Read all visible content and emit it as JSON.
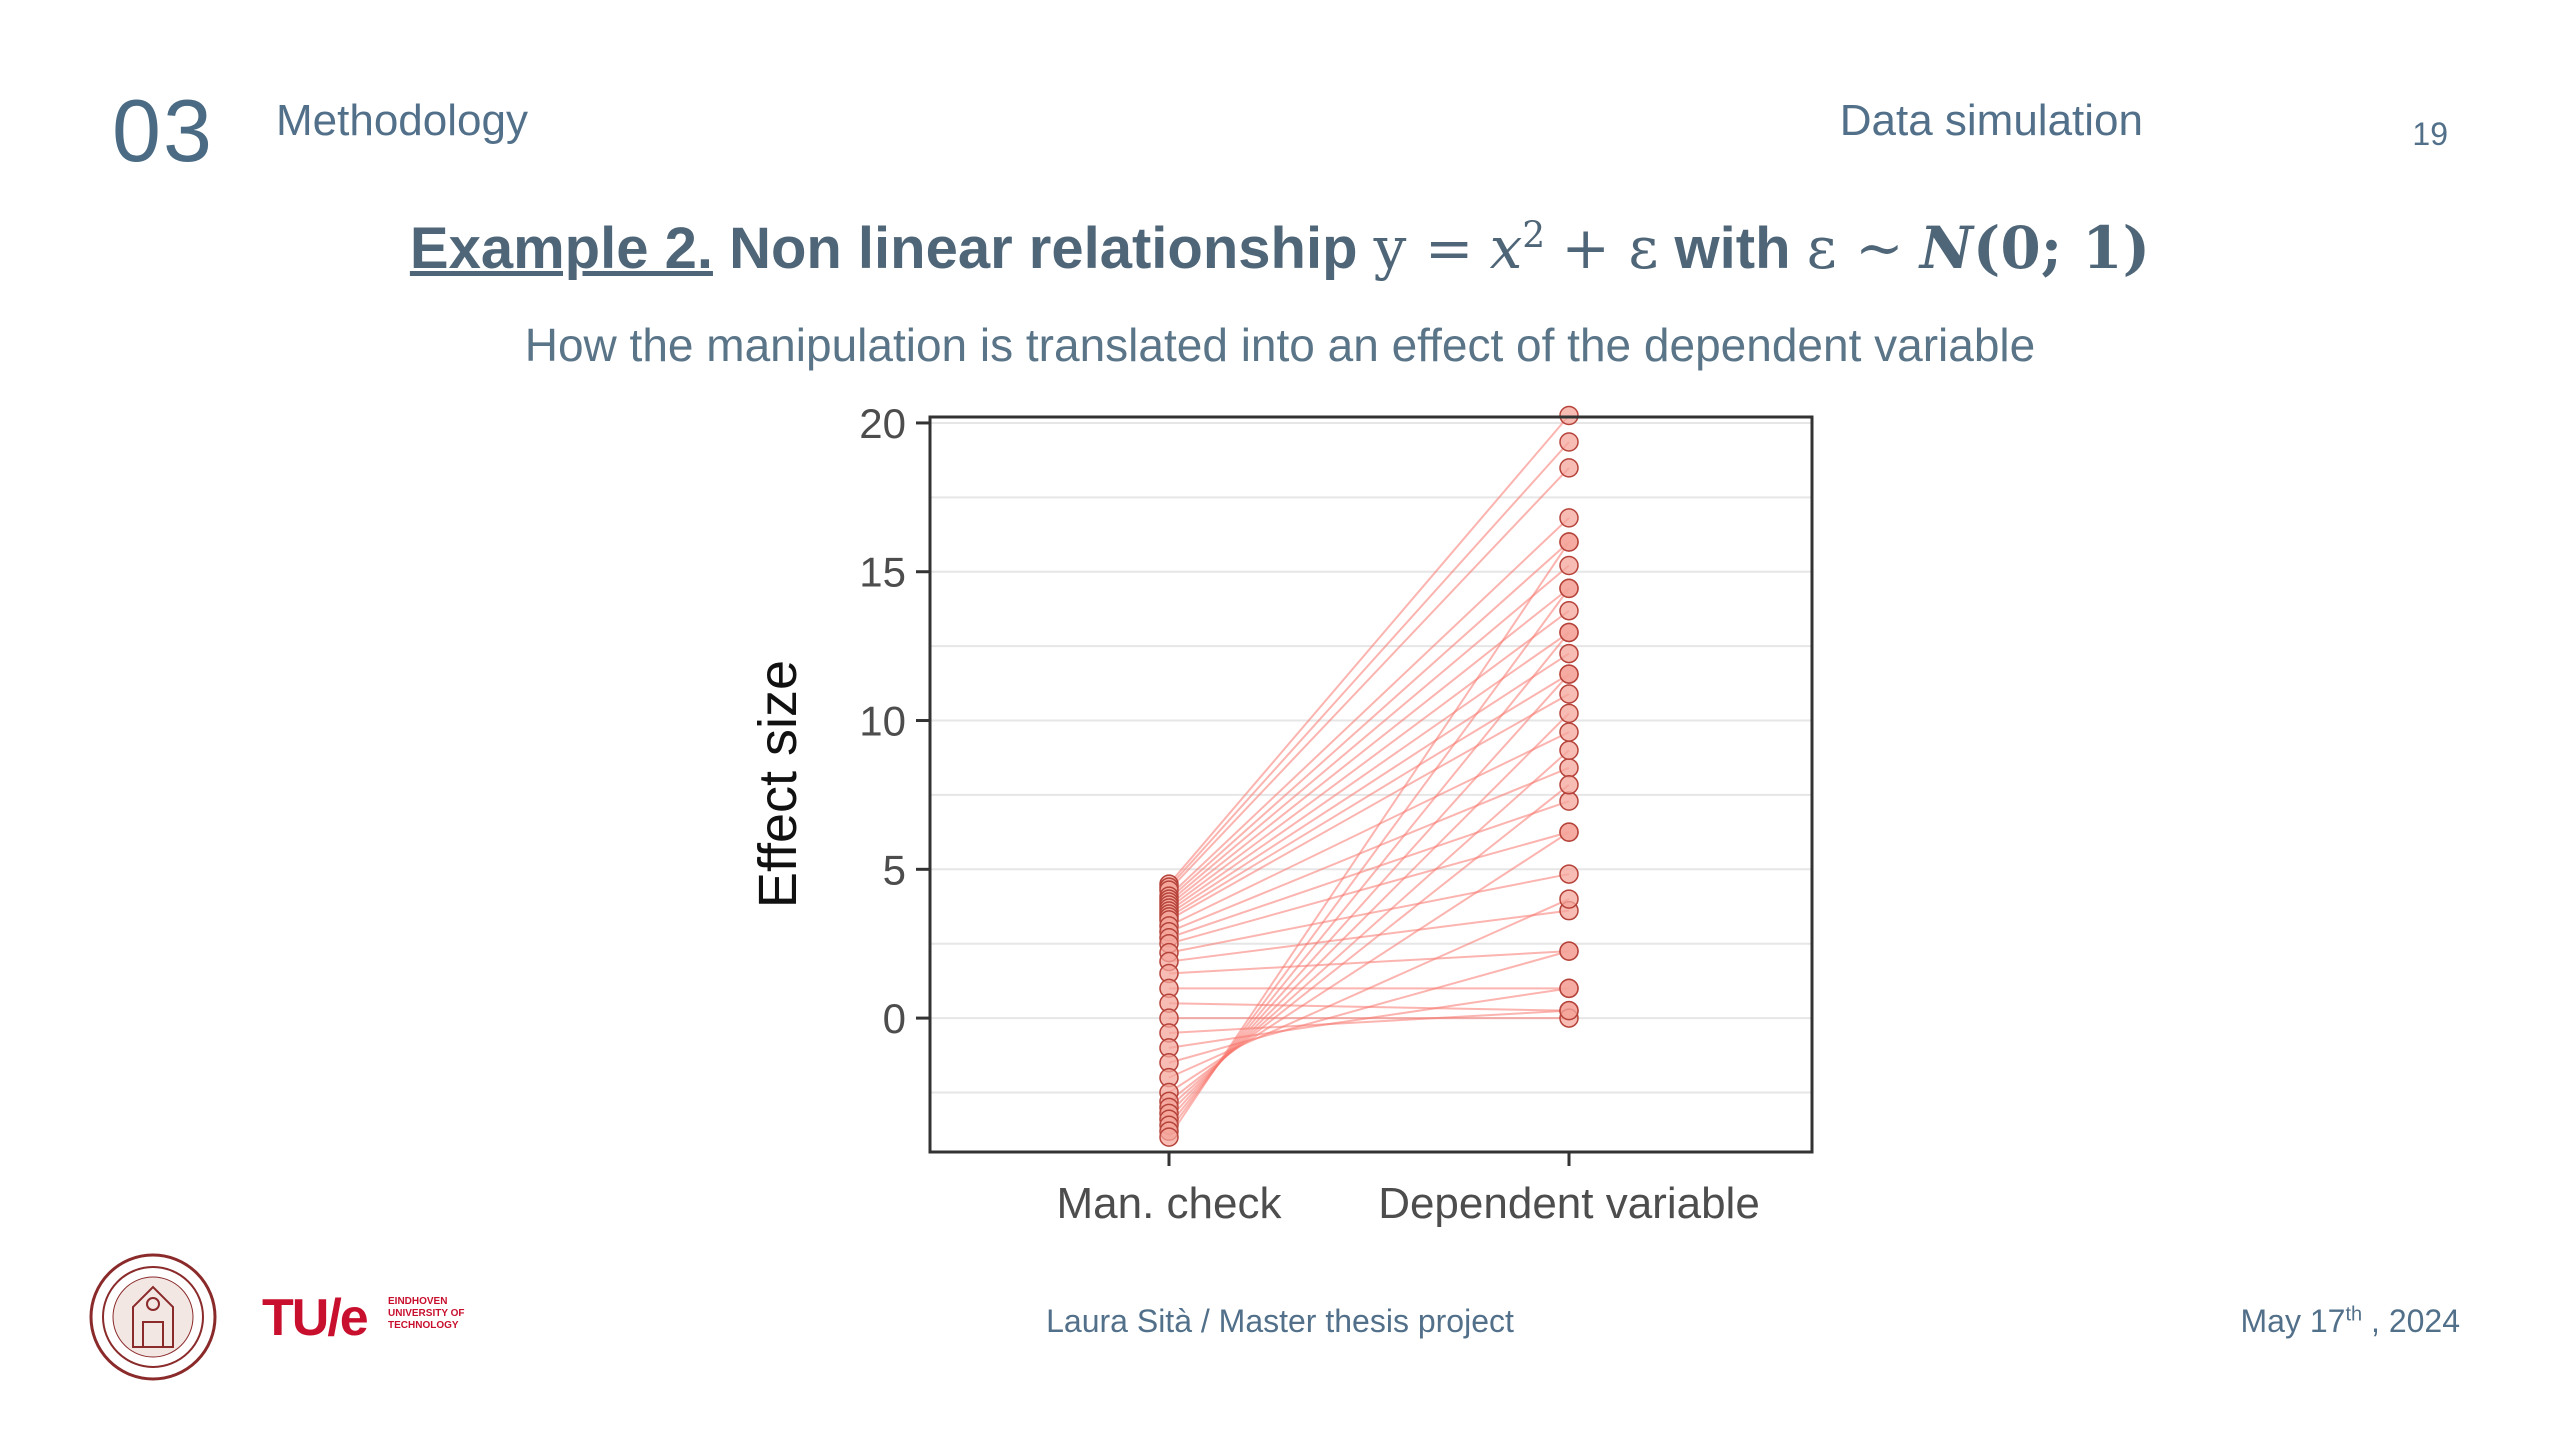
{
  "header": {
    "section_number": "03",
    "section_title": "Methodology",
    "topic": "Data simulation",
    "page_number": "19"
  },
  "slide": {
    "title_example": "Example 2.",
    "title_text": "Non linear relationship",
    "title_y": "y =",
    "title_x": "x",
    "title_exp": "2",
    "title_plus_eps": "+ ε",
    "title_with": "with",
    "title_eps_dist": "ε ~",
    "title_N": "N",
    "title_params": "(0; 1)",
    "subtitle": "How the manipulation is translated into an effect of the dependent variable"
  },
  "chart_data": {
    "type": "line",
    "categories": [
      "Man. check",
      "Dependent variable"
    ],
    "ylabel": "Effect size",
    "xlabel": "",
    "ylim": [
      -4.5,
      20.2
    ],
    "yticks": [
      0,
      5,
      10,
      15,
      20
    ],
    "grid": true,
    "colors": {
      "line": "#f8766d",
      "point_fill": "#f4a59b",
      "point_stroke": "#b5433a",
      "grid": "#e6e6e6",
      "axis": "#333333"
    },
    "pairs": [
      [
        4.5,
        20.25
      ],
      [
        4.4,
        19.36
      ],
      [
        4.3,
        18.49
      ],
      [
        4.1,
        16.81
      ],
      [
        4.0,
        16.0
      ],
      [
        3.9,
        15.21
      ],
      [
        3.8,
        14.44
      ],
      [
        3.7,
        13.69
      ],
      [
        3.6,
        12.96
      ],
      [
        3.5,
        12.25
      ],
      [
        3.4,
        11.56
      ],
      [
        3.3,
        10.89
      ],
      [
        3.1,
        9.61
      ],
      [
        2.9,
        8.41
      ],
      [
        2.7,
        7.29
      ],
      [
        2.5,
        6.25
      ],
      [
        2.2,
        4.84
      ],
      [
        1.9,
        3.61
      ],
      [
        1.5,
        2.25
      ],
      [
        1.0,
        1.0
      ],
      [
        0.5,
        0.25
      ],
      [
        0.0,
        0.0
      ],
      [
        -0.5,
        0.25
      ],
      [
        -1.0,
        1.0
      ],
      [
        -1.5,
        2.25
      ],
      [
        -2.0,
        4.0
      ],
      [
        -2.5,
        6.25
      ],
      [
        -2.8,
        7.84
      ],
      [
        -3.0,
        9.0
      ],
      [
        -3.2,
        10.24
      ],
      [
        -3.4,
        11.56
      ],
      [
        -3.6,
        12.96
      ],
      [
        -3.8,
        14.44
      ],
      [
        -4.0,
        16.0
      ]
    ]
  },
  "footer": {
    "author": "Laura Sità / Master thesis project",
    "date_prefix": "May 17",
    "date_sup": "th",
    "date_suffix": " , 2024",
    "logo_tue": "TU/e",
    "logo_tue_small": "EINDHOVEN UNIVERSITY OF TECHNOLOGY"
  }
}
